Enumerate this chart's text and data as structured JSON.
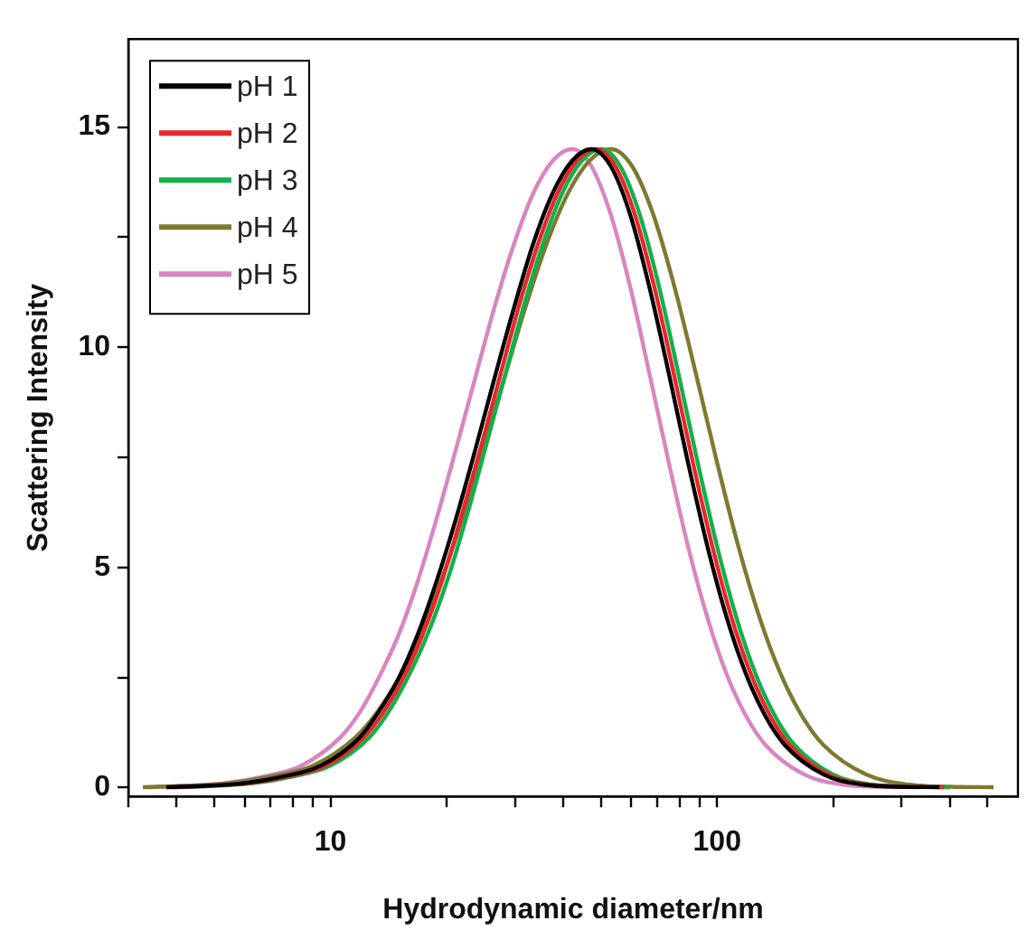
{
  "chart_data": {
    "type": "line",
    "xlabel": "Hydrodynamic diameter/nm",
    "ylabel": "Scattering Intensity",
    "log": "x",
    "xlim": [
      3,
      600
    ],
    "ylim": [
      -0.2,
      17
    ],
    "xticks": [
      {
        "value": 3,
        "label": null
      },
      {
        "value": 4,
        "label": null
      },
      {
        "value": 5,
        "label": null
      },
      {
        "value": 6,
        "label": null
      },
      {
        "value": 7,
        "label": null
      },
      {
        "value": 8,
        "label": null
      },
      {
        "value": 9,
        "label": null
      },
      10,
      {
        "value": 20,
        "label": null
      },
      {
        "value": 30,
        "label": null
      },
      {
        "value": 40,
        "label": null
      },
      {
        "value": 50,
        "label": null
      },
      {
        "value": 60,
        "label": null
      },
      {
        "value": 70,
        "label": null
      },
      {
        "value": 80,
        "label": null
      },
      {
        "value": 90,
        "label": null
      },
      100,
      {
        "value": 200,
        "label": null
      },
      {
        "value": 300,
        "label": null
      },
      {
        "value": 400,
        "label": null
      },
      {
        "value": 500,
        "label": null
      }
    ],
    "yticks": [
      0,
      {
        "value": 2.5,
        "label": null
      },
      5,
      {
        "value": 7.5,
        "label": null
      },
      10,
      {
        "value": 12.5,
        "label": null
      },
      15
    ],
    "grid": false,
    "legend": "top left",
    "marker": "none",
    "line_style": "solid",
    "series": [
      {
        "name": "pH 1",
        "color": "#000000",
        "x": [
          3.76,
          4.73,
          5.96,
          7.5,
          9.44,
          11.9,
          13.3,
          15.0,
          16.8,
          18.8,
          21.1,
          23.7,
          26.6,
          29.9,
          33.5,
          37.6,
          42.2,
          47.3,
          53.1,
          59.6,
          66.8,
          75.0,
          84.1,
          94.4,
          105.9,
          118.9,
          133.4,
          149.6,
          188.4,
          237.1,
          298.5,
          375.8
        ],
        "values": [
          0.01,
          0.04,
          0.1,
          0.25,
          0.5,
          1.14,
          1.71,
          2.48,
          3.47,
          4.68,
          6.1,
          7.68,
          9.32,
          10.93,
          12.37,
          13.51,
          14.24,
          14.5,
          14.11,
          13.01,
          11.37,
          9.41,
          7.38,
          5.48,
          3.86,
          2.57,
          1.62,
          0.97,
          0.3,
          0.07,
          0.02,
          0.01
        ]
      },
      {
        "name": "pH 2",
        "color": "#e8262b",
        "x": [
          3.87,
          4.87,
          6.13,
          7.72,
          9.72,
          12.2,
          13.7,
          15.4,
          17.3,
          19.4,
          21.7,
          24.4,
          27.4,
          30.7,
          34.5,
          38.7,
          43.4,
          48.7,
          54.6,
          61.3,
          68.8,
          77.2,
          86.6,
          97.2,
          109,
          122.4,
          137.3,
          154,
          193.9,
          244.1,
          307.3,
          386.9
        ],
        "values": [
          0.01,
          0.04,
          0.1,
          0.25,
          0.5,
          1.14,
          1.71,
          2.48,
          3.47,
          4.68,
          6.1,
          7.68,
          9.32,
          10.93,
          12.37,
          13.51,
          14.24,
          14.5,
          14.11,
          13.01,
          11.37,
          9.41,
          7.38,
          5.48,
          3.86,
          2.57,
          1.62,
          0.97,
          0.3,
          0.07,
          0.02,
          0.01
        ]
      },
      {
        "name": "pH 3",
        "color": "#12b04a",
        "x": [
          3.98,
          5.01,
          6.31,
          7.94,
          10,
          12.6,
          14.1,
          15.8,
          17.8,
          20.0,
          22.4,
          25.1,
          28.2,
          31.6,
          35.5,
          39.8,
          44.7,
          50.1,
          56.2,
          63.1,
          70.8,
          79.4,
          89.1,
          100,
          112.2,
          125.9,
          141.3,
          158.5,
          199.5,
          251.2,
          316.2,
          398.1
        ],
        "values": [
          0.01,
          0.04,
          0.1,
          0.25,
          0.5,
          1.14,
          1.71,
          2.48,
          3.47,
          4.68,
          6.1,
          7.68,
          9.32,
          10.93,
          12.37,
          13.51,
          14.24,
          14.5,
          14.11,
          13.01,
          11.37,
          9.41,
          7.38,
          5.48,
          3.86,
          2.57,
          1.62,
          0.97,
          0.3,
          0.07,
          0.02,
          0.01
        ]
      },
      {
        "name": "pH 4",
        "color": "#7d7a30",
        "x": [
          3.27,
          4.22,
          5.43,
          7.0,
          9.02,
          11.6,
          13.2,
          15.0,
          17.0,
          19.3,
          21.9,
          24.8,
          28.2,
          32.0,
          36.3,
          41.2,
          46.8,
          53.1,
          60.3,
          68.4,
          77.6,
          88.1,
          100,
          113.5,
          128.8,
          146.2,
          166,
          188.4,
          242.7,
          312.6,
          402.7,
          518.8
        ],
        "values": [
          0.01,
          0.04,
          0.1,
          0.25,
          0.5,
          1.14,
          1.71,
          2.48,
          3.47,
          4.68,
          6.1,
          7.68,
          9.32,
          10.93,
          12.37,
          13.51,
          14.24,
          14.5,
          14.11,
          13.01,
          11.37,
          9.41,
          7.38,
          5.48,
          3.86,
          2.57,
          1.62,
          0.97,
          0.3,
          0.07,
          0.02,
          0.01
        ]
      },
      {
        "name": "pH 5",
        "color": "#d985c0",
        "x": [
          3.35,
          4.22,
          5.31,
          6.68,
          8.41,
          10.6,
          11.9,
          13.3,
          15.0,
          16.8,
          18.8,
          21.1,
          23.7,
          26.6,
          29.9,
          33.5,
          37.6,
          42.2,
          47.3,
          53.1,
          59.6,
          66.8,
          75.0,
          84.1,
          94.4,
          105.9,
          118.9,
          133.4,
          167.9,
          211.3,
          266.1,
          335
        ],
        "values": [
          0.01,
          0.04,
          0.1,
          0.25,
          0.5,
          1.14,
          1.71,
          2.48,
          3.47,
          4.68,
          6.1,
          7.68,
          9.32,
          10.93,
          12.37,
          13.51,
          14.24,
          14.5,
          14.11,
          13.01,
          11.37,
          9.41,
          7.38,
          5.48,
          3.86,
          2.57,
          1.62,
          0.97,
          0.3,
          0.07,
          0.02,
          0.01
        ]
      }
    ]
  }
}
